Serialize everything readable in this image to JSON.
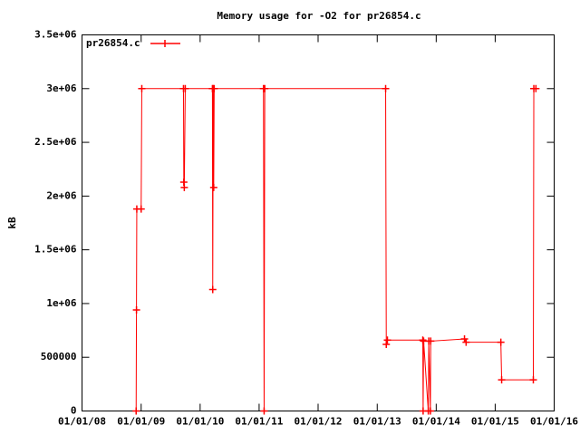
{
  "chart_data": {
    "type": "line",
    "title": "Memory usage for -O2 for pr26854.c",
    "y_label": "kB",
    "legend": "top-left",
    "x": [
      "2008-12-01",
      "2008-12-03",
      "2008-12-05",
      "2009-01-01",
      "2009-01-05",
      "2009-09-20",
      "2009-09-22",
      "2009-09-25",
      "2009-10-01",
      "2010-03-18",
      "2010-03-20",
      "2010-03-23",
      "2010-03-26",
      "2010-03-29",
      "2011-01-28",
      "2011-02-01",
      "2011-02-05",
      "2013-02-22",
      "2013-02-26",
      "2013-03-05",
      "2013-10-10",
      "2013-10-12",
      "2013-10-15",
      "2013-11-13",
      "2013-11-16",
      "2013-11-26",
      "2013-11-28",
      "2014-06-25",
      "2014-07-05",
      "2015-02-05",
      "2015-02-10",
      "2015-08-25",
      "2015-08-28",
      "2015-09-10"
    ],
    "series": [
      {
        "name": "pr26854.c",
        "color": "#ff0000",
        "values": [
          0,
          940000,
          1880000,
          1880000,
          3000000,
          3000000,
          2130000,
          2080000,
          3000000,
          3000000,
          1130000,
          3000000,
          2080000,
          3000000,
          3000000,
          0,
          3000000,
          3000000,
          620000,
          660000,
          660000,
          0,
          650000,
          0,
          650000,
          0,
          650000,
          670000,
          640000,
          640000,
          290000,
          290000,
          3000000,
          3000000
        ]
      }
    ],
    "xlim": [
      "2008-01-01",
      "2016-01-01"
    ],
    "xticks": [
      {
        "value": "2008-01-01",
        "label": "01/01/08"
      },
      {
        "value": "2009-01-01",
        "label": "01/01/09"
      },
      {
        "value": "2010-01-01",
        "label": "01/01/10"
      },
      {
        "value": "2011-01-01",
        "label": "01/01/11"
      },
      {
        "value": "2012-01-01",
        "label": "01/01/12"
      },
      {
        "value": "2013-01-01",
        "label": "01/01/13"
      },
      {
        "value": "2014-01-01",
        "label": "01/01/14"
      },
      {
        "value": "2015-01-01",
        "label": "01/01/15"
      },
      {
        "value": "2016-01-01",
        "label": "01/01/16"
      }
    ],
    "ylim": [
      0,
      3500000
    ],
    "yticks": [
      0,
      500000,
      {
        "value": 1000000,
        "label": "1e+06"
      },
      {
        "value": 1500000,
        "label": "1.5e+06"
      },
      {
        "value": 2000000,
        "label": "2e+06"
      },
      {
        "value": 2500000,
        "label": "2.5e+06"
      },
      {
        "value": 3000000,
        "label": "3e+06"
      },
      {
        "value": 3500000,
        "label": "3.5e+06"
      }
    ],
    "grid": false
  }
}
